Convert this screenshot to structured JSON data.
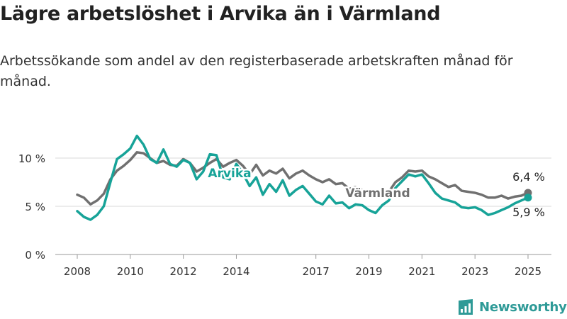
{
  "title": "Lägre arbetslöshet i Arvika än i Värmland",
  "subtitle": "Arbetssökande som andel av den registerbaserade arbetskraften månad för månad.",
  "brand": {
    "name": "Newsworthy"
  },
  "colors": {
    "arvika": "#17a398",
    "varmland": "#707070",
    "grid": "#d9d9d9",
    "text": "#222222",
    "brand": "#2e9a97"
  },
  "icons": {
    "brand": "bar-chart-icon"
  },
  "chart_data": {
    "type": "line",
    "title": "Lägre arbetslöshet i Arvika än i Värmland",
    "xlabel": "",
    "ylabel": "",
    "ylim": [
      0,
      13
    ],
    "xlim": [
      2007.5,
      2025.7
    ],
    "yticks": [
      0,
      5,
      10
    ],
    "ytick_labels": [
      "0 %",
      "5 %",
      "10 %"
    ],
    "xticks": [
      2008,
      2010,
      2012,
      2014,
      2017,
      2019,
      2021,
      2023,
      2025
    ],
    "xtick_labels": [
      "2008",
      "2010",
      "2012",
      "2014",
      "2017",
      "2019",
      "2021",
      "2023",
      "2025"
    ],
    "grid": true,
    "series": [
      {
        "name": "Värmland",
        "color": "#707070",
        "end_label": "6,4 %",
        "points": [
          [
            2008.0,
            6.2
          ],
          [
            2008.25,
            5.9
          ],
          [
            2008.5,
            5.2
          ],
          [
            2008.75,
            5.6
          ],
          [
            2009.0,
            6.3
          ],
          [
            2009.25,
            7.8
          ],
          [
            2009.5,
            8.7
          ],
          [
            2009.75,
            9.2
          ],
          [
            2010.0,
            9.8
          ],
          [
            2010.25,
            10.6
          ],
          [
            2010.5,
            10.5
          ],
          [
            2010.75,
            10.0
          ],
          [
            2011.0,
            9.5
          ],
          [
            2011.25,
            9.7
          ],
          [
            2011.5,
            9.3
          ],
          [
            2011.75,
            9.2
          ],
          [
            2012.0,
            9.9
          ],
          [
            2012.25,
            9.5
          ],
          [
            2012.5,
            8.6
          ],
          [
            2012.75,
            9.0
          ],
          [
            2013.0,
            9.5
          ],
          [
            2013.25,
            9.9
          ],
          [
            2013.5,
            9.1
          ],
          [
            2013.75,
            9.5
          ],
          [
            2014.0,
            9.8
          ],
          [
            2014.25,
            9.2
          ],
          [
            2014.5,
            8.3
          ],
          [
            2014.75,
            9.3
          ],
          [
            2015.0,
            8.2
          ],
          [
            2015.25,
            8.7
          ],
          [
            2015.5,
            8.4
          ],
          [
            2015.75,
            8.9
          ],
          [
            2016.0,
            7.9
          ],
          [
            2016.25,
            8.4
          ],
          [
            2016.5,
            8.7
          ],
          [
            2016.75,
            8.2
          ],
          [
            2017.0,
            7.8
          ],
          [
            2017.25,
            7.5
          ],
          [
            2017.5,
            7.8
          ],
          [
            2017.75,
            7.3
          ],
          [
            2018.0,
            7.4
          ],
          [
            2018.25,
            6.8
          ],
          [
            2018.5,
            7.0
          ],
          [
            2018.75,
            6.7
          ],
          [
            2019.0,
            6.3
          ],
          [
            2019.25,
            6.1
          ],
          [
            2019.5,
            6.7
          ],
          [
            2019.75,
            6.5
          ],
          [
            2020.0,
            7.5
          ],
          [
            2020.25,
            8.0
          ],
          [
            2020.5,
            8.7
          ],
          [
            2020.75,
            8.6
          ],
          [
            2021.0,
            8.7
          ],
          [
            2021.25,
            8.1
          ],
          [
            2021.5,
            7.8
          ],
          [
            2021.75,
            7.4
          ],
          [
            2022.0,
            7.0
          ],
          [
            2022.25,
            7.2
          ],
          [
            2022.5,
            6.6
          ],
          [
            2022.75,
            6.5
          ],
          [
            2023.0,
            6.4
          ],
          [
            2023.25,
            6.2
          ],
          [
            2023.5,
            5.9
          ],
          [
            2023.75,
            5.9
          ],
          [
            2024.0,
            6.1
          ],
          [
            2024.25,
            5.8
          ],
          [
            2024.5,
            6.0
          ],
          [
            2024.75,
            6.1
          ],
          [
            2025.0,
            6.4
          ]
        ]
      },
      {
        "name": "Arvika",
        "color": "#17a398",
        "end_label": "5,9 %",
        "points": [
          [
            2008.0,
            4.5
          ],
          [
            2008.25,
            3.9
          ],
          [
            2008.5,
            3.6
          ],
          [
            2008.75,
            4.1
          ],
          [
            2009.0,
            5.0
          ],
          [
            2009.25,
            7.5
          ],
          [
            2009.5,
            9.9
          ],
          [
            2009.75,
            10.4
          ],
          [
            2010.0,
            11.0
          ],
          [
            2010.25,
            12.3
          ],
          [
            2010.5,
            11.4
          ],
          [
            2010.75,
            9.9
          ],
          [
            2011.0,
            9.5
          ],
          [
            2011.25,
            10.9
          ],
          [
            2011.5,
            9.4
          ],
          [
            2011.75,
            9.1
          ],
          [
            2012.0,
            9.8
          ],
          [
            2012.25,
            9.5
          ],
          [
            2012.5,
            7.8
          ],
          [
            2012.75,
            8.6
          ],
          [
            2013.0,
            10.4
          ],
          [
            2013.25,
            10.3
          ],
          [
            2013.5,
            8.0
          ],
          [
            2013.75,
            7.8
          ],
          [
            2014.0,
            9.4
          ],
          [
            2014.25,
            8.4
          ],
          [
            2014.5,
            7.1
          ],
          [
            2014.75,
            8.0
          ],
          [
            2015.0,
            6.2
          ],
          [
            2015.25,
            7.3
          ],
          [
            2015.5,
            6.5
          ],
          [
            2015.75,
            7.7
          ],
          [
            2016.0,
            6.1
          ],
          [
            2016.25,
            6.7
          ],
          [
            2016.5,
            7.1
          ],
          [
            2016.75,
            6.3
          ],
          [
            2017.0,
            5.5
          ],
          [
            2017.25,
            5.2
          ],
          [
            2017.5,
            6.1
          ],
          [
            2017.75,
            5.3
          ],
          [
            2018.0,
            5.4
          ],
          [
            2018.25,
            4.8
          ],
          [
            2018.5,
            5.2
          ],
          [
            2018.75,
            5.1
          ],
          [
            2019.0,
            4.6
          ],
          [
            2019.25,
            4.3
          ],
          [
            2019.5,
            5.1
          ],
          [
            2019.75,
            5.6
          ],
          [
            2020.0,
            6.9
          ],
          [
            2020.25,
            7.6
          ],
          [
            2020.5,
            8.3
          ],
          [
            2020.75,
            8.1
          ],
          [
            2021.0,
            8.3
          ],
          [
            2021.25,
            7.4
          ],
          [
            2021.5,
            6.4
          ],
          [
            2021.75,
            5.8
          ],
          [
            2022.0,
            5.6
          ],
          [
            2022.25,
            5.4
          ],
          [
            2022.5,
            4.9
          ],
          [
            2022.75,
            4.8
          ],
          [
            2023.0,
            4.9
          ],
          [
            2023.25,
            4.6
          ],
          [
            2023.5,
            4.1
          ],
          [
            2023.75,
            4.3
          ],
          [
            2024.0,
            4.6
          ],
          [
            2024.25,
            4.9
          ],
          [
            2024.5,
            5.3
          ],
          [
            2024.75,
            5.6
          ],
          [
            2025.0,
            5.9
          ]
        ]
      }
    ]
  }
}
